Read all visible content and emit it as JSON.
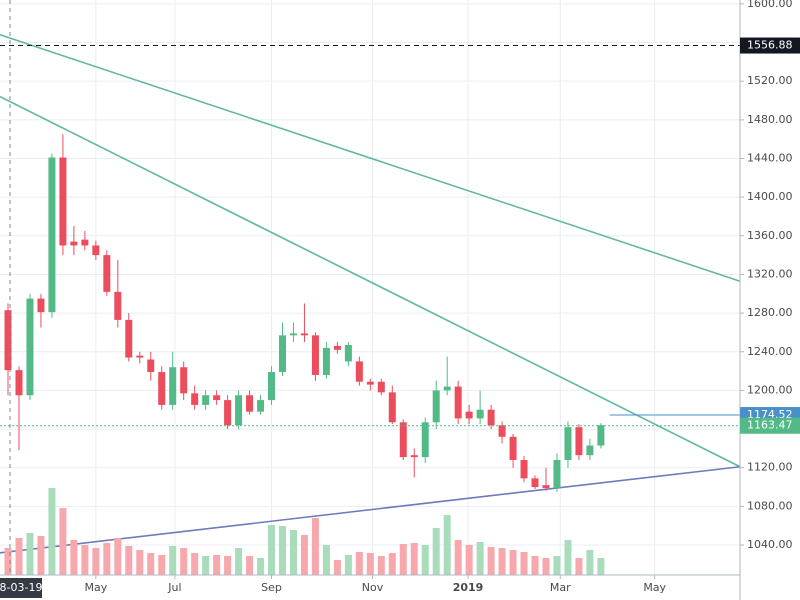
{
  "chart_data": {
    "type": "candlestick",
    "open": [
      1283,
      1221,
      1195,
      1295,
      1281,
      1441,
      1354,
      1356,
      1350,
      1340,
      1302,
      1273,
      1236,
      1232,
      1219,
      1185,
      1224,
      1197,
      1185,
      1195,
      1190,
      1164,
      1195,
      1178,
      1190,
      1219,
      1257,
      1259,
      1257,
      1216,
      1246,
      1230,
      1230,
      1209,
      1209,
      1198,
      1167,
      1133,
      1131,
      1167,
      1200,
      1204,
      1178,
      1171,
      1180,
      1164,
      1152,
      1128,
      1109,
      1102,
      1099,
      1128,
      1162,
      1133,
      1143
    ],
    "high": [
      1290,
      1225,
      1300,
      1300,
      1445,
      1465,
      1370,
      1365,
      1355,
      1345,
      1335,
      1280,
      1240,
      1240,
      1225,
      1240,
      1230,
      1205,
      1200,
      1200,
      1195,
      1200,
      1200,
      1195,
      1225,
      1270,
      1270,
      1290,
      1260,
      1250,
      1250,
      1250,
      1235,
      1212,
      1212,
      1205,
      1170,
      1140,
      1172,
      1210,
      1235,
      1210,
      1185,
      1200,
      1185,
      1168,
      1155,
      1132,
      1112,
      1120,
      1135,
      1168,
      1165,
      1150,
      1166
    ],
    "low": [
      1195,
      1138,
      1190,
      1265,
      1275,
      1340,
      1340,
      1345,
      1335,
      1298,
      1265,
      1230,
      1228,
      1210,
      1180,
      1180,
      1190,
      1180,
      1180,
      1185,
      1160,
      1160,
      1175,
      1175,
      1185,
      1215,
      1250,
      1250,
      1210,
      1212,
      1238,
      1225,
      1205,
      1200,
      1195,
      1165,
      1128,
      1110,
      1125,
      1160,
      1195,
      1165,
      1165,
      1165,
      1160,
      1145,
      1120,
      1105,
      1098,
      1096,
      1095,
      1120,
      1128,
      1128,
      1140
    ],
    "close": [
      1221,
      1195,
      1295,
      1281,
      1441,
      1350,
      1350,
      1350,
      1340,
      1302,
      1273,
      1234,
      1234,
      1219,
      1185,
      1224,
      1197,
      1185,
      1195,
      1190,
      1164,
      1195,
      1178,
      1190,
      1219,
      1257,
      1259,
      1257,
      1216,
      1244,
      1242,
      1247,
      1209,
      1206,
      1198,
      1167,
      1131,
      1131,
      1167,
      1200,
      1204,
      1171,
      1171,
      1180,
      1164,
      1152,
      1128,
      1109,
      1100,
      1099,
      1128,
      1162,
      1133,
      1143,
      1164
    ],
    "volume": [
      27,
      37,
      42,
      39,
      87,
      67,
      35,
      30,
      27,
      32,
      37,
      29,
      25,
      22,
      20,
      29,
      27,
      22,
      19,
      20,
      19,
      27,
      19,
      17,
      50,
      49,
      45,
      40,
      57,
      30,
      15,
      20,
      23,
      22,
      19,
      22,
      31,
      32,
      30,
      47,
      60,
      35,
      30,
      33,
      28,
      27,
      25,
      23,
      19,
      17,
      19,
      35,
      17,
      25,
      17
    ],
    "up_color": "#53b987",
    "down_color": "#eb4d5c",
    "volume_up_color": "#a8dcbb",
    "volume_down_color": "#f6a8ad",
    "xlim": [
      -0.73,
      66.67
    ],
    "ylim": [
      1009,
      1604
    ],
    "yticks": [
      {
        "value": 1600,
        "label": "1600.00"
      },
      {
        "value": 1560,
        "label": "1560.00"
      },
      {
        "value": 1520,
        "label": "1520.00"
      },
      {
        "value": 1480,
        "label": "1480.00"
      },
      {
        "value": 1440,
        "label": "1440.00"
      },
      {
        "value": 1400,
        "label": "1400.00"
      },
      {
        "value": 1360,
        "label": "1360.00"
      },
      {
        "value": 1320,
        "label": "1320.00"
      },
      {
        "value": 1280,
        "label": "1280.00"
      },
      {
        "value": 1240,
        "label": "1240.00"
      },
      {
        "value": 1200,
        "label": "1200.00"
      },
      {
        "value": 1160,
        "label": "1160.00"
      },
      {
        "value": 1120,
        "label": "1120.00"
      },
      {
        "value": 1080,
        "label": "1080.00"
      },
      {
        "value": 1040,
        "label": "1040.00"
      }
    ],
    "xticks": [
      {
        "value": 8,
        "label": "May"
      },
      {
        "value": 15.2,
        "label": "Jul"
      },
      {
        "value": 24,
        "label": "Sep"
      },
      {
        "value": 33.2,
        "label": "Nov"
      },
      {
        "value": 41.9,
        "label": "2019"
      },
      {
        "value": 50.3,
        "label": "Mar"
      },
      {
        "value": 58.9,
        "label": "May"
      }
    ],
    "crosshair_label": "8-03-19",
    "price_lines": [
      {
        "value": 1556.88,
        "color": "#131722",
        "style": "dashed",
        "from": -0.73
      },
      {
        "value": 1174.52,
        "color": "#4a90c8",
        "style": "solid",
        "from": 54.8
      },
      {
        "value": 1163.47,
        "color": "#53b987",
        "style": "dotted",
        "from": -0.73
      }
    ],
    "trendlines": [
      {
        "x": [
          -0.73,
          66.67
        ],
        "y": [
          1568,
          1313
        ],
        "color": "#5fb8a0"
      },
      {
        "x": [
          -0.73,
          66.67
        ],
        "y": [
          1504,
          1121
        ],
        "color": "#5fb8a0"
      },
      {
        "x": [
          -0.73,
          66.67
        ],
        "y": [
          1032,
          1121
        ],
        "color": "#6c7bbd"
      }
    ],
    "grid": true
  }
}
